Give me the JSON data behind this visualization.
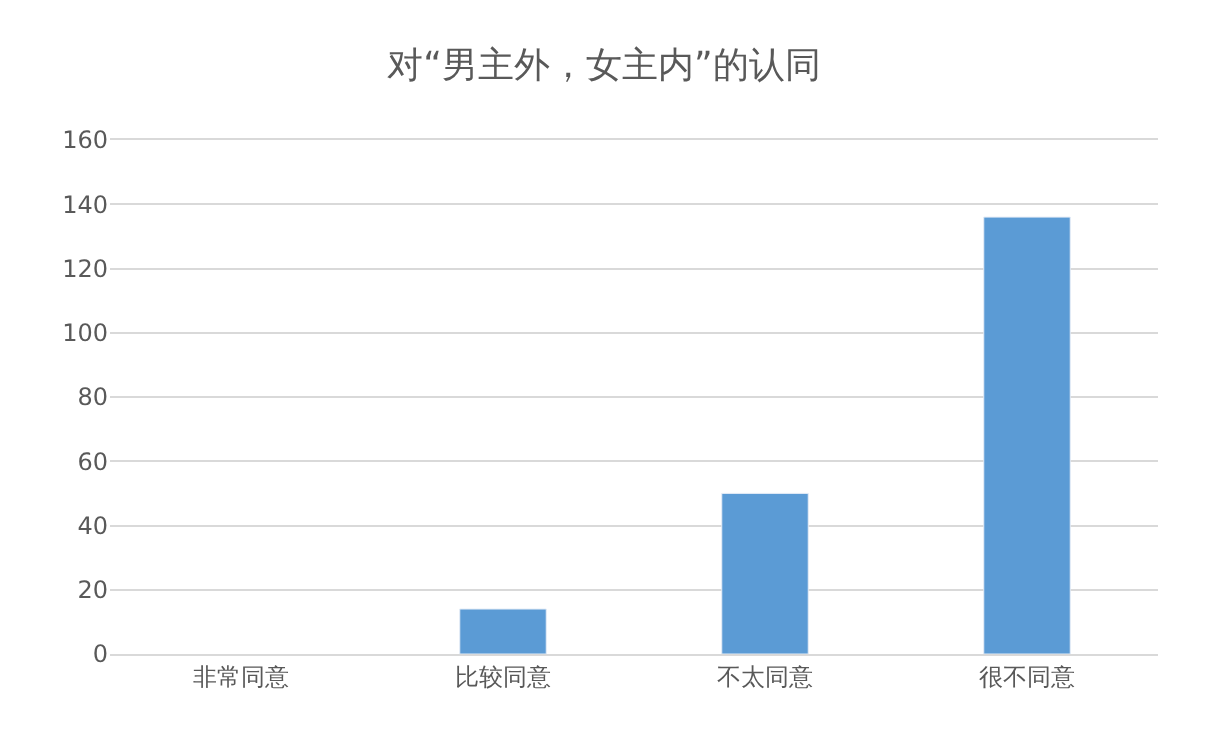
{
  "chart_data": {
    "type": "bar",
    "title": "对“男主外，女主内”的认同",
    "categories": [
      "非常同意",
      "比较同意",
      "不太同意",
      "很不同意"
    ],
    "values": [
      null,
      14,
      50,
      136
    ],
    "color": "#5b9bd5",
    "ylim": [
      0,
      160
    ],
    "yticks": [
      0,
      20,
      40,
      60,
      80,
      100,
      120,
      140,
      160
    ],
    "grid": "y",
    "legend": false
  }
}
